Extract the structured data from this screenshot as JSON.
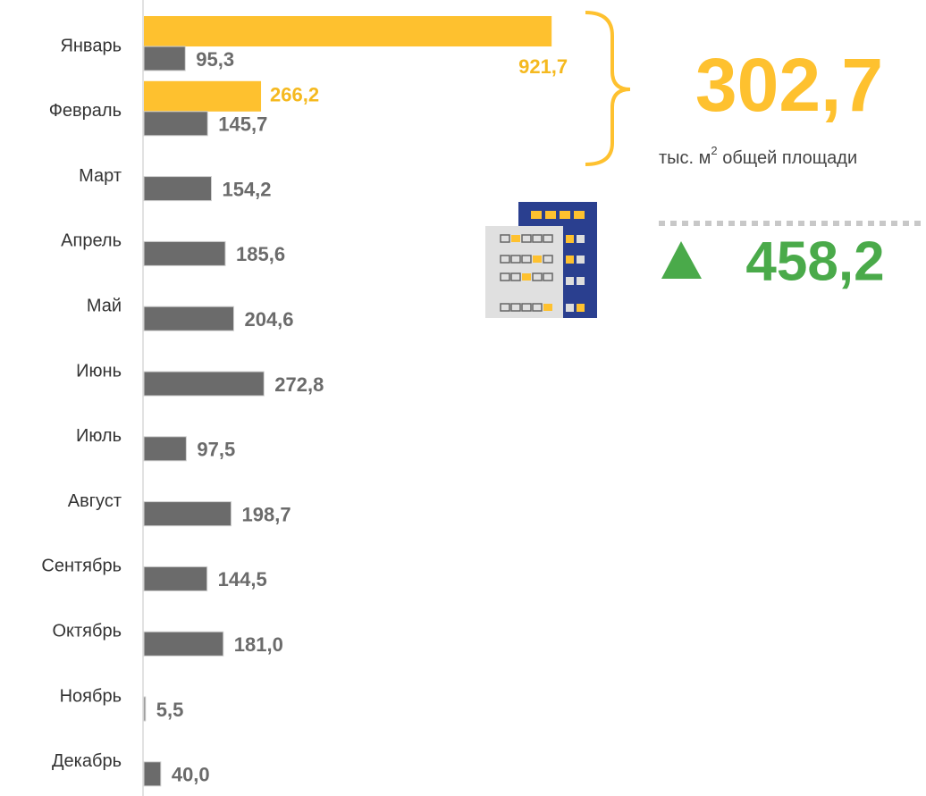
{
  "chart_data": {
    "type": "hbar",
    "categories": [
      "Январь",
      "Февраль",
      "Март",
      "Апрель",
      "Май",
      "Июнь",
      "Июль",
      "Август",
      "Сентябрь",
      "Октябрь",
      "Ноябрь",
      "Декабрь"
    ],
    "series": [
      {
        "color": "#fec12f",
        "values": [
          921.7,
          266.2,
          null,
          null,
          null,
          null,
          null,
          null,
          null,
          null,
          null,
          null
        ],
        "value_labels": [
          "921,7",
          "266,2",
          null,
          null,
          null,
          null,
          null,
          null,
          null,
          null,
          null,
          null
        ]
      },
      {
        "color": "#6b6b6b",
        "values": [
          95.3,
          145.7,
          154.2,
          185.6,
          204.6,
          272.8,
          97.5,
          198.7,
          144.5,
          181.0,
          5.5,
          40.0
        ],
        "value_labels": [
          "95,3",
          "145,7",
          "154,2",
          "185,6",
          "204,6",
          "272,8",
          "97,5",
          "198,7",
          "144,5",
          "181,0",
          "5,5",
          "40,0"
        ]
      }
    ],
    "xlim": [
      0,
      1000
    ],
    "annotations": {
      "total": "302,7",
      "unit": "тыс. м",
      "unit_sup": "2",
      "unit_rest": " общей площади",
      "change": "458,2"
    }
  }
}
